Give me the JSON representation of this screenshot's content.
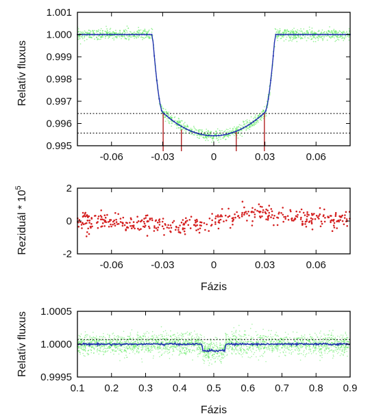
{
  "colors": {
    "model": "#1f2fb0",
    "data_cloud": "#4ce84c",
    "residual": "#d42020",
    "contact_lines": "#b02020",
    "reference_lines": "#000000",
    "frame": "#000000"
  },
  "chart_data": [
    {
      "id": "transit",
      "type": "scatter",
      "xlabel": "",
      "ylabel": "Relatív fluxus",
      "xlim": [
        -0.08,
        0.08
      ],
      "ylim": [
        0.995,
        1.001
      ],
      "xticks": [
        {
          "value": -0.06,
          "label": "-0.06"
        },
        {
          "value": -0.03,
          "label": "-0.03"
        },
        {
          "value": 0,
          "label": "0"
        },
        {
          "value": 0.03,
          "label": "0.03"
        },
        {
          "value": 0.06,
          "label": "0.06"
        }
      ],
      "yticks": [
        {
          "value": 0.995,
          "label": "0.995"
        },
        {
          "value": 0.996,
          "label": "0.996"
        },
        {
          "value": 0.997,
          "label": "0.997"
        },
        {
          "value": 0.998,
          "label": "0.998"
        },
        {
          "value": 0.999,
          "label": "0.999"
        },
        {
          "value": 1.0,
          "label": "1.000"
        },
        {
          "value": 1.001,
          "label": "1.001"
        }
      ],
      "grid": false,
      "series": [
        {
          "style": "scatter-cloud",
          "color": "#4ce84c",
          "x": [
            -0.08,
            -0.036,
            -0.03,
            -0.02,
            0,
            0.02,
            0.03,
            0.036,
            0.08
          ],
          "y": [
            1.0,
            1.0,
            0.9965,
            0.9958,
            0.99545,
            0.9958,
            0.9965,
            1.0,
            1.0
          ],
          "scatter_sd": 0.00012
        },
        {
          "style": "line-points",
          "color": "#1f2fb0",
          "x": [
            -0.08,
            -0.036,
            -0.03,
            -0.02,
            0,
            0.02,
            0.03,
            0.036,
            0.08
          ],
          "y": [
            1.0,
            1.0,
            0.9965,
            0.9958,
            0.99545,
            0.9958,
            0.9965,
            1.0,
            1.0
          ]
        }
      ],
      "hlines": [
        0.99645,
        0.99557
      ],
      "contact_lines": [
        {
          "x": -0.0297,
          "y_top": 0.9965
        },
        {
          "x": -0.019,
          "y_top": 0.99573
        },
        {
          "x": 0.0132,
          "y_top": 0.99565
        },
        {
          "x": 0.0297,
          "y_top": 0.9965
        }
      ]
    },
    {
      "id": "residuals",
      "type": "scatter",
      "xlabel": "Fázis",
      "ylabel_text": "Reziduál * 10",
      "ylabel_exponent": "5",
      "xlim": [
        -0.08,
        0.08
      ],
      "ylim": [
        -2,
        2
      ],
      "xticks": [
        {
          "value": -0.06,
          "label": "-0.06"
        },
        {
          "value": -0.03,
          "label": "-0.03"
        },
        {
          "value": 0,
          "label": "0"
        },
        {
          "value": 0.03,
          "label": "0.03"
        },
        {
          "value": 0.06,
          "label": "0.06"
        }
      ],
      "yticks": [
        {
          "value": -2,
          "label": "-2"
        },
        {
          "value": 0,
          "label": "0"
        },
        {
          "value": 2,
          "label": "2"
        }
      ],
      "grid": false,
      "trend": {
        "x": [
          -0.08,
          -0.06,
          -0.035,
          -0.02,
          -0.01,
          0,
          0.01,
          0.02,
          0.025,
          0.035,
          0.05,
          0.08
        ],
        "y": [
          0.0,
          0.0,
          -0.25,
          -0.35,
          -0.15,
          0.05,
          0.25,
          0.5,
          0.6,
          0.4,
          0.1,
          0.0
        ]
      },
      "scatter_sd": 0.28,
      "n_points": 420
    },
    {
      "id": "full-orbit",
      "type": "scatter",
      "xlabel": "Fázis",
      "ylabel": "Relatív fluxus",
      "xlim": [
        0.1,
        0.9
      ],
      "ylim": [
        0.9995,
        1.0005
      ],
      "xticks": [
        {
          "value": 0.1,
          "label": "0.1"
        },
        {
          "value": 0.2,
          "label": "0.2"
        },
        {
          "value": 0.3,
          "label": "0.3"
        },
        {
          "value": 0.4,
          "label": "0.4"
        },
        {
          "value": 0.5,
          "label": "0.5"
        },
        {
          "value": 0.6,
          "label": "0.6"
        },
        {
          "value": 0.7,
          "label": "0.7"
        },
        {
          "value": 0.8,
          "label": "0.8"
        },
        {
          "value": 0.9,
          "label": "0.9"
        }
      ],
      "yticks": [
        {
          "value": 0.9995,
          "label": "0.9995"
        },
        {
          "value": 1.0,
          "label": "1.0000"
        },
        {
          "value": 1.0005,
          "label": "1.0005"
        }
      ],
      "grid": false,
      "series": [
        {
          "style": "scatter-cloud",
          "color": "#4ce84c",
          "x": [
            0.1,
            0.465,
            0.468,
            0.532,
            0.535,
            0.9
          ],
          "y": [
            1.0,
            1.0,
            0.9999,
            0.9999,
            1.0,
            1.0
          ],
          "scatter_sd": 8e-05
        },
        {
          "style": "line-points",
          "color": "#1f2fb0",
          "x": [
            0.1,
            0.465,
            0.468,
            0.532,
            0.535,
            0.9
          ],
          "y": [
            1.0,
            1.0,
            0.9999,
            0.9999,
            1.0,
            1.0
          ]
        }
      ],
      "hlines": [
        1.00007
      ]
    }
  ]
}
